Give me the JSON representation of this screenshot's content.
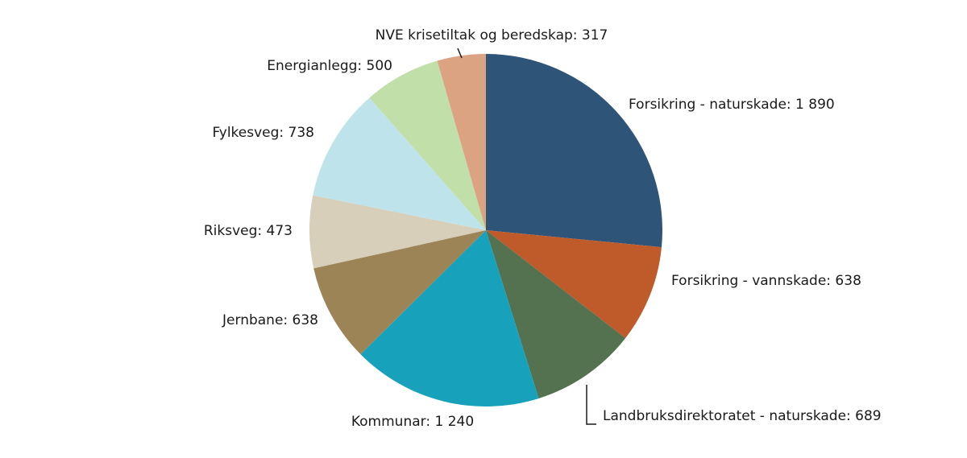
{
  "chart_data": {
    "type": "pie",
    "values": [
      1890,
      638,
      689,
      1240,
      638,
      473,
      738,
      500,
      317
    ],
    "value_labels": [
      "Forsikring - naturskade: 1 890",
      "Forsikring - vannskade: 638",
      "Landbruksdirektoratet - naturskade: 689",
      "Kommunar: 1 240",
      "Jernbane: 638",
      "Riksveg: 473",
      "Fylkesveg: 738",
      "Energianlegg: 500",
      "NVE krisetiltak og beredskap: 317"
    ],
    "colors": [
      "#2e5577",
      "#bf5a2b",
      "#547150",
      "#17a1bb",
      "#9c8457",
      "#d8cfba",
      "#bfe3ea",
      "#c1dfa8",
      "#dca383"
    ]
  }
}
